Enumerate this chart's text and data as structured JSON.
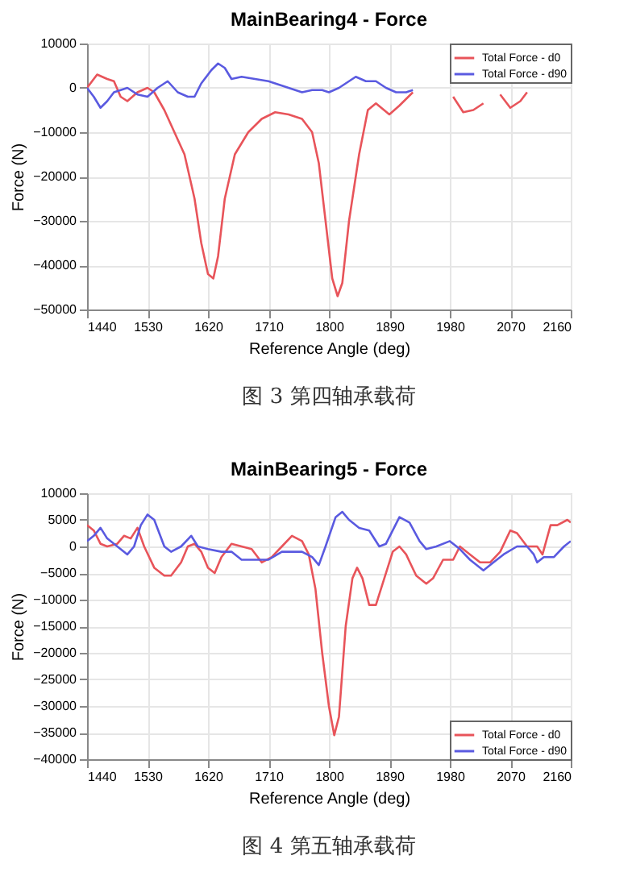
{
  "chart_data": [
    {
      "type": "line",
      "title": "MainBearing4 - Force",
      "xlabel": "Reference Angle (deg)",
      "ylabel": "Force (N)",
      "xlim": [
        1440,
        2160
      ],
      "xticks": [
        1440,
        1530,
        1620,
        1710,
        1800,
        1890,
        1980,
        2070,
        2160
      ],
      "ylim": [
        -50000,
        10000
      ],
      "yticks": [
        -50000,
        -40000,
        -30000,
        -20000,
        -10000,
        0,
        10000
      ],
      "grid": true,
      "legend": "top right",
      "annotations": [
        "图 3 第四轴承载荷"
      ],
      "series": [
        {
          "name": "Total Force - d0",
          "color": "#e8545a",
          "x": [
            1440,
            1455,
            1470,
            1480,
            1490,
            1500,
            1515,
            1530,
            1540,
            1555,
            1570,
            1585,
            1600,
            1610,
            1620,
            1628,
            1635,
            1645,
            1660,
            1680,
            1700,
            1720,
            1740,
            1760,
            1775,
            1785,
            1795,
            1805,
            1813,
            1820,
            1830,
            1845,
            1858,
            1870,
            1890,
            1905,
            1925,
            1950,
            1985,
            2000,
            2015,
            2030,
            2045,
            2055,
            2070,
            2085,
            2095
          ],
          "values": [
            0,
            3000,
            2000,
            1500,
            -2000,
            -3000,
            -1000,
            0,
            -1000,
            -5000,
            -10000,
            -15000,
            -25000,
            -35000,
            -42000,
            -43000,
            -38000,
            -25000,
            -15000,
            -10000,
            -7000,
            -5500,
            -6000,
            -7000,
            -10000,
            -17000,
            -30000,
            -43000,
            -47000,
            -44000,
            -30000,
            -15000,
            -5000,
            -3500,
            -6000,
            -4000,
            -1000,
            null,
            -2000,
            -5500,
            -5000,
            -3500,
            null,
            -1500,
            -4500,
            -3000,
            -1000
          ]
        },
        {
          "name": "Total Force - d90",
          "color": "#5a5ae0",
          "x": [
            1440,
            1450,
            1460,
            1470,
            1480,
            1500,
            1515,
            1530,
            1545,
            1560,
            1575,
            1590,
            1600,
            1610,
            1625,
            1635,
            1645,
            1655,
            1670,
            1690,
            1710,
            1730,
            1750,
            1760,
            1775,
            1790,
            1800,
            1815,
            1830,
            1840,
            1855,
            1870,
            1885,
            1900,
            1915,
            1925
          ],
          "values": [
            0,
            -2000,
            -4500,
            -3000,
            -1000,
            0,
            -1500,
            -2000,
            0,
            1500,
            -1000,
            -2000,
            -2000,
            1000,
            4000,
            5500,
            4500,
            2000,
            2500,
            2000,
            1500,
            500,
            -500,
            -1000,
            -500,
            -500,
            -1000,
            0,
            1500,
            2500,
            1500,
            1500,
            0,
            -1000,
            -1000,
            -500
          ]
        }
      ]
    },
    {
      "type": "line",
      "title": "MainBearing5 - Force",
      "xlabel": "Reference Angle (deg)",
      "ylabel": "Force (N)",
      "xlim": [
        1440,
        2160
      ],
      "xticks": [
        1440,
        1530,
        1620,
        1710,
        1800,
        1890,
        1980,
        2070,
        2160
      ],
      "ylim": [
        -40000,
        10000
      ],
      "yticks": [
        -40000,
        -35000,
        -30000,
        -25000,
        -20000,
        -15000,
        -10000,
        -5000,
        0,
        5000,
        10000
      ],
      "grid": true,
      "legend": "bottom right",
      "annotations": [
        "图 4 第五轴承载荷"
      ],
      "series": [
        {
          "name": "Total Force - d0",
          "color": "#e8545a",
          "x": [
            1440,
            1450,
            1460,
            1470,
            1485,
            1495,
            1505,
            1515,
            1525,
            1540,
            1555,
            1565,
            1580,
            1590,
            1600,
            1610,
            1620,
            1630,
            1640,
            1655,
            1670,
            1685,
            1700,
            1715,
            1730,
            1745,
            1760,
            1770,
            1780,
            1790,
            1800,
            1808,
            1815,
            1825,
            1835,
            1842,
            1850,
            1860,
            1870,
            1880,
            1895,
            1905,
            1915,
            1930,
            1945,
            1955,
            1970,
            1985,
            1995,
            2010,
            2025,
            2040,
            2055,
            2070,
            2080,
            2095,
            2110,
            2118,
            2130,
            2140,
            2155,
            2160
          ],
          "values": [
            4000,
            3000,
            500,
            0,
            500,
            2000,
            1500,
            3500,
            0,
            -4000,
            -5500,
            -5500,
            -3000,
            0,
            500,
            -1000,
            -4000,
            -5000,
            -2000,
            500,
            0,
            -500,
            -3000,
            -2000,
            0,
            2000,
            1000,
            -1500,
            -8000,
            -20000,
            -30000,
            -35500,
            -32000,
            -15000,
            -6000,
            -4000,
            -6000,
            -11000,
            -11000,
            -7000,
            -1000,
            0,
            -1500,
            -5500,
            -7000,
            -6000,
            -2500,
            -2500,
            0,
            -1500,
            -3000,
            -3000,
            -1000,
            3000,
            2500,
            0,
            0,
            -1500,
            4000,
            4000,
            5000,
            4500
          ]
        },
        {
          "name": "Total Force - d90",
          "color": "#5a5ae0",
          "x": [
            1440,
            1450,
            1460,
            1470,
            1485,
            1500,
            1510,
            1520,
            1530,
            1540,
            1555,
            1565,
            1580,
            1595,
            1605,
            1620,
            1640,
            1655,
            1670,
            1690,
            1710,
            1730,
            1760,
            1775,
            1785,
            1795,
            1810,
            1820,
            1830,
            1845,
            1860,
            1875,
            1885,
            1905,
            1920,
            1935,
            1945,
            1960,
            1980,
            1995,
            2010,
            2030,
            2045,
            2060,
            2080,
            2095,
            2105,
            2110,
            2120,
            2135,
            2150,
            2160
          ],
          "values": [
            1000,
            2000,
            3500,
            1500,
            0,
            -1500,
            0,
            4000,
            6000,
            5000,
            0,
            -1000,
            0,
            2000,
            0,
            -500,
            -1000,
            -1000,
            -2500,
            -2500,
            -2500,
            -1000,
            -1000,
            -2000,
            -3500,
            0,
            5500,
            6500,
            5000,
            3500,
            3000,
            0,
            500,
            5500,
            4500,
            1000,
            -500,
            0,
            1000,
            -500,
            -2500,
            -4500,
            -3000,
            -1500,
            0,
            0,
            -1500,
            -3000,
            -2000,
            -2000,
            0,
            1000
          ]
        }
      ]
    }
  ]
}
